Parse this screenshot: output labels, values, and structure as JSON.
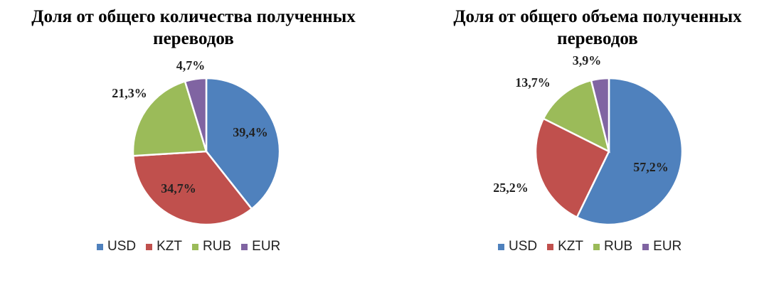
{
  "chart_data": [
    {
      "type": "pie",
      "title": "Доля от общего количества полученных переводов",
      "categories": [
        "USD",
        "KZT",
        "RUB",
        "EUR"
      ],
      "values": [
        39.4,
        34.7,
        21.3,
        4.7
      ],
      "labels": [
        "39,4%",
        "34,7%",
        "21,3%",
        "4,7%"
      ],
      "colors": [
        "#4f81bd",
        "#c0504d",
        "#9bbb59",
        "#8064a2"
      ],
      "legend_position": "bottom"
    },
    {
      "type": "pie",
      "title": "Доля от общего объема полученных переводов",
      "categories": [
        "USD",
        "KZT",
        "RUB",
        "EUR"
      ],
      "values": [
        57.2,
        25.2,
        13.7,
        3.9
      ],
      "labels": [
        "57,2%",
        "25,2%",
        "13,7%",
        "3,9%"
      ],
      "colors": [
        "#4f81bd",
        "#c0504d",
        "#9bbb59",
        "#8064a2"
      ],
      "legend_position": "bottom"
    }
  ]
}
